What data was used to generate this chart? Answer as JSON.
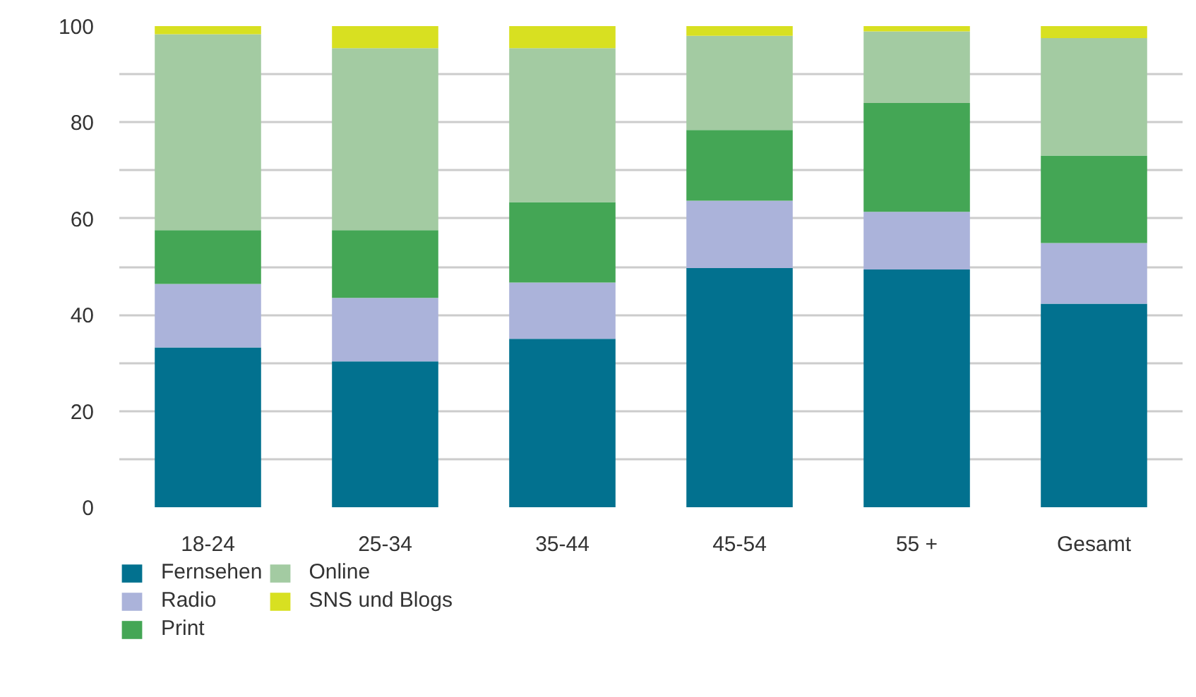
{
  "chart_data": {
    "type": "bar",
    "stacked": true,
    "categories": [
      "18-24",
      "25-34",
      "35-44",
      "45-54",
      "55 +",
      "Gesamt"
    ],
    "series": [
      {
        "name": "Fernsehen",
        "color": "#02718f",
        "values": [
          33.2,
          30.3,
          35.0,
          49.7,
          49.4,
          42.3
        ]
      },
      {
        "name": "Radio",
        "color": "#abb3da",
        "values": [
          13.2,
          13.2,
          11.7,
          14.0,
          12.0,
          12.6
        ]
      },
      {
        "name": "Print",
        "color": "#44a655",
        "values": [
          11.2,
          14.1,
          16.7,
          14.7,
          22.6,
          18.2
        ]
      },
      {
        "name": "Online",
        "color": "#a3cba2",
        "values": [
          40.7,
          37.8,
          32.0,
          19.6,
          14.9,
          24.4
        ]
      },
      {
        "name": "SNS und Blogs",
        "color": "#d8e021",
        "values": [
          1.7,
          4.6,
          4.6,
          2.0,
          1.1,
          2.5
        ]
      }
    ],
    "ylim": [
      0,
      100
    ],
    "yticks": [
      0,
      {
        "value": 10,
        "label": null
      },
      20,
      {
        "value": 30,
        "label": null
      },
      40,
      {
        "value": 50,
        "label": null
      },
      60,
      {
        "value": 70,
        "label": null
      },
      80,
      {
        "value": 90,
        "label": null
      },
      100
    ],
    "grid": "y",
    "legend": "bottom"
  }
}
